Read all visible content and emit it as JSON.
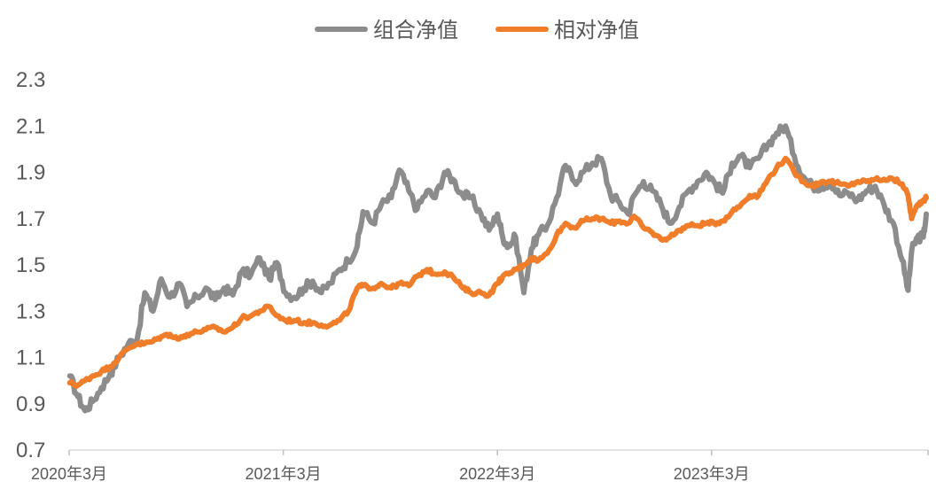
{
  "chart_data": {
    "type": "line",
    "title": "",
    "xlabel": "",
    "ylabel": "",
    "ylim": [
      0.7,
      2.3
    ],
    "yticks": [
      "2.3",
      "2.1",
      "1.9",
      "1.7",
      "1.5",
      "1.3",
      "1.1",
      "0.9",
      "0.7"
    ],
    "xticks": [
      "2020年3月",
      "2021年3月",
      "2022年3月",
      "2023年3月"
    ],
    "x_range": [
      "2020-03",
      "2024-03"
    ],
    "grid": false,
    "legend_position": "top-center",
    "series": [
      {
        "name": "组合净值",
        "color": "#8c8c8c",
        "points": [
          [
            "2020-03-02",
            1.02
          ],
          [
            "2020-03-16",
            0.93
          ],
          [
            "2020-03-28",
            0.87
          ],
          [
            "2020-04-10",
            0.91
          ],
          [
            "2020-04-25",
            0.97
          ],
          [
            "2020-05-10",
            1.03
          ],
          [
            "2020-05-25",
            1.1
          ],
          [
            "2020-06-10",
            1.16
          ],
          [
            "2020-06-25",
            1.18
          ],
          [
            "2020-07-08",
            1.38
          ],
          [
            "2020-07-22",
            1.3
          ],
          [
            "2020-08-05",
            1.44
          ],
          [
            "2020-08-20",
            1.36
          ],
          [
            "2020-09-05",
            1.42
          ],
          [
            "2020-09-18",
            1.32
          ],
          [
            "2020-10-05",
            1.36
          ],
          [
            "2020-10-20",
            1.4
          ],
          [
            "2020-11-05",
            1.35
          ],
          [
            "2020-11-20",
            1.4
          ],
          [
            "2020-12-05",
            1.37
          ],
          [
            "2020-12-20",
            1.47
          ],
          [
            "2021-01-05",
            1.46
          ],
          [
            "2021-01-20",
            1.53
          ],
          [
            "2021-02-05",
            1.44
          ],
          [
            "2021-02-18",
            1.51
          ],
          [
            "2021-03-05",
            1.38
          ],
          [
            "2021-03-20",
            1.36
          ],
          [
            "2021-04-05",
            1.4
          ],
          [
            "2021-04-20",
            1.43
          ],
          [
            "2021-05-05",
            1.38
          ],
          [
            "2021-05-20",
            1.42
          ],
          [
            "2021-06-05",
            1.48
          ],
          [
            "2021-06-20",
            1.52
          ],
          [
            "2021-07-05",
            1.58
          ],
          [
            "2021-07-15",
            1.73
          ],
          [
            "2021-08-01",
            1.68
          ],
          [
            "2021-08-15",
            1.76
          ],
          [
            "2021-09-01",
            1.79
          ],
          [
            "2021-09-15",
            1.91
          ],
          [
            "2021-10-01",
            1.82
          ],
          [
            "2021-10-15",
            1.74
          ],
          [
            "2021-11-01",
            1.82
          ],
          [
            "2021-11-15",
            1.79
          ],
          [
            "2021-12-01",
            1.9
          ],
          [
            "2021-12-15",
            1.87
          ],
          [
            "2022-01-01",
            1.8
          ],
          [
            "2022-01-15",
            1.79
          ],
          [
            "2022-02-01",
            1.72
          ],
          [
            "2022-02-15",
            1.65
          ],
          [
            "2022-03-01",
            1.72
          ],
          [
            "2022-03-10",
            1.62
          ],
          [
            "2022-03-20",
            1.58
          ],
          [
            "2022-04-01",
            1.62
          ],
          [
            "2022-04-15",
            1.38
          ],
          [
            "2022-04-28",
            1.57
          ],
          [
            "2022-05-10",
            1.63
          ],
          [
            "2022-05-25",
            1.67
          ],
          [
            "2022-06-10",
            1.79
          ],
          [
            "2022-06-25",
            1.93
          ],
          [
            "2022-07-10",
            1.86
          ],
          [
            "2022-07-25",
            1.9
          ],
          [
            "2022-08-10",
            1.94
          ],
          [
            "2022-08-25",
            1.96
          ],
          [
            "2022-09-10",
            1.8
          ],
          [
            "2022-09-25",
            1.77
          ],
          [
            "2022-10-10",
            1.72
          ],
          [
            "2022-10-20",
            1.8
          ],
          [
            "2022-11-05",
            1.86
          ],
          [
            "2022-11-20",
            1.82
          ],
          [
            "2022-12-05",
            1.76
          ],
          [
            "2022-12-20",
            1.68
          ],
          [
            "2023-01-05",
            1.75
          ],
          [
            "2023-01-20",
            1.82
          ],
          [
            "2023-02-05",
            1.86
          ],
          [
            "2023-02-20",
            1.9
          ],
          [
            "2023-03-05",
            1.86
          ],
          [
            "2023-03-20",
            1.81
          ],
          [
            "2023-04-05",
            1.94
          ],
          [
            "2023-04-20",
            1.97
          ],
          [
            "2023-05-05",
            1.92
          ],
          [
            "2023-05-20",
            1.96
          ],
          [
            "2023-06-05",
            2.02
          ],
          [
            "2023-06-20",
            2.07
          ],
          [
            "2023-07-05",
            2.1
          ],
          [
            "2023-07-20",
            1.97
          ],
          [
            "2023-08-05",
            1.88
          ],
          [
            "2023-08-20",
            1.84
          ],
          [
            "2023-09-05",
            1.84
          ],
          [
            "2023-09-20",
            1.86
          ],
          [
            "2023-10-05",
            1.8
          ],
          [
            "2023-10-20",
            1.81
          ],
          [
            "2023-11-05",
            1.78
          ],
          [
            "2023-11-20",
            1.82
          ],
          [
            "2023-12-05",
            1.84
          ],
          [
            "2023-12-20",
            1.76
          ],
          [
            "2024-01-05",
            1.68
          ],
          [
            "2024-01-20",
            1.52
          ],
          [
            "2024-01-30",
            1.39
          ],
          [
            "2024-02-05",
            1.56
          ],
          [
            "2024-02-15",
            1.62
          ],
          [
            "2024-02-25",
            1.62
          ],
          [
            "2024-03-01",
            1.72
          ]
        ]
      },
      {
        "name": "相对净值",
        "color": "#f07d2a",
        "points": [
          [
            "2020-03-02",
            0.99
          ],
          [
            "2020-03-16",
            0.98
          ],
          [
            "2020-03-28",
            1.0
          ],
          [
            "2020-04-10",
            1.02
          ],
          [
            "2020-04-25",
            1.04
          ],
          [
            "2020-05-10",
            1.06
          ],
          [
            "2020-05-25",
            1.1
          ],
          [
            "2020-06-10",
            1.14
          ],
          [
            "2020-06-25",
            1.16
          ],
          [
            "2020-07-08",
            1.16
          ],
          [
            "2020-07-22",
            1.17
          ],
          [
            "2020-08-05",
            1.19
          ],
          [
            "2020-08-20",
            1.2
          ],
          [
            "2020-09-05",
            1.18
          ],
          [
            "2020-09-18",
            1.2
          ],
          [
            "2020-10-05",
            1.21
          ],
          [
            "2020-10-20",
            1.22
          ],
          [
            "2020-11-05",
            1.23
          ],
          [
            "2020-11-20",
            1.21
          ],
          [
            "2020-12-05",
            1.23
          ],
          [
            "2020-12-20",
            1.27
          ],
          [
            "2021-01-05",
            1.28
          ],
          [
            "2021-01-20",
            1.3
          ],
          [
            "2021-02-05",
            1.32
          ],
          [
            "2021-02-18",
            1.28
          ],
          [
            "2021-03-05",
            1.26
          ],
          [
            "2021-03-20",
            1.26
          ],
          [
            "2021-04-05",
            1.25
          ],
          [
            "2021-04-20",
            1.25
          ],
          [
            "2021-05-05",
            1.24
          ],
          [
            "2021-05-20",
            1.24
          ],
          [
            "2021-06-05",
            1.26
          ],
          [
            "2021-06-20",
            1.3
          ],
          [
            "2021-07-05",
            1.4
          ],
          [
            "2021-07-15",
            1.41
          ],
          [
            "2021-08-01",
            1.4
          ],
          [
            "2021-08-15",
            1.42
          ],
          [
            "2021-09-01",
            1.4
          ],
          [
            "2021-09-15",
            1.42
          ],
          [
            "2021-10-01",
            1.41
          ],
          [
            "2021-10-15",
            1.45
          ],
          [
            "2021-11-01",
            1.48
          ],
          [
            "2021-11-15",
            1.46
          ],
          [
            "2021-12-01",
            1.47
          ],
          [
            "2021-12-15",
            1.45
          ],
          [
            "2022-01-01",
            1.4
          ],
          [
            "2022-01-15",
            1.38
          ],
          [
            "2022-02-01",
            1.38
          ],
          [
            "2022-02-15",
            1.37
          ],
          [
            "2022-03-01",
            1.42
          ],
          [
            "2022-03-10",
            1.45
          ],
          [
            "2022-03-20",
            1.46
          ],
          [
            "2022-04-01",
            1.48
          ],
          [
            "2022-04-15",
            1.5
          ],
          [
            "2022-04-28",
            1.53
          ],
          [
            "2022-05-10",
            1.52
          ],
          [
            "2022-05-25",
            1.55
          ],
          [
            "2022-06-10",
            1.63
          ],
          [
            "2022-06-25",
            1.68
          ],
          [
            "2022-07-10",
            1.66
          ],
          [
            "2022-07-25",
            1.69
          ],
          [
            "2022-08-10",
            1.7
          ],
          [
            "2022-08-25",
            1.7
          ],
          [
            "2022-09-10",
            1.68
          ],
          [
            "2022-09-25",
            1.69
          ],
          [
            "2022-10-10",
            1.68
          ],
          [
            "2022-10-20",
            1.71
          ],
          [
            "2022-11-05",
            1.66
          ],
          [
            "2022-11-20",
            1.64
          ],
          [
            "2022-12-05",
            1.61
          ],
          [
            "2022-12-20",
            1.62
          ],
          [
            "2023-01-05",
            1.65
          ],
          [
            "2023-01-20",
            1.67
          ],
          [
            "2023-02-05",
            1.67
          ],
          [
            "2023-02-20",
            1.68
          ],
          [
            "2023-03-05",
            1.68
          ],
          [
            "2023-03-20",
            1.69
          ],
          [
            "2023-04-05",
            1.73
          ],
          [
            "2023-04-20",
            1.76
          ],
          [
            "2023-05-05",
            1.8
          ],
          [
            "2023-05-20",
            1.8
          ],
          [
            "2023-06-05",
            1.87
          ],
          [
            "2023-06-20",
            1.92
          ],
          [
            "2023-07-05",
            1.96
          ],
          [
            "2023-07-20",
            1.9
          ],
          [
            "2023-08-05",
            1.86
          ],
          [
            "2023-08-20",
            1.84
          ],
          [
            "2023-09-05",
            1.86
          ],
          [
            "2023-09-20",
            1.86
          ],
          [
            "2023-10-05",
            1.85
          ],
          [
            "2023-10-20",
            1.84
          ],
          [
            "2023-11-05",
            1.86
          ],
          [
            "2023-11-20",
            1.86
          ],
          [
            "2023-12-05",
            1.87
          ],
          [
            "2023-12-20",
            1.87
          ],
          [
            "2024-01-05",
            1.87
          ],
          [
            "2024-01-20",
            1.85
          ],
          [
            "2024-01-30",
            1.8
          ],
          [
            "2024-02-05",
            1.7
          ],
          [
            "2024-02-15",
            1.76
          ],
          [
            "2024-02-25",
            1.78
          ],
          [
            "2024-03-01",
            1.79
          ]
        ]
      }
    ]
  }
}
